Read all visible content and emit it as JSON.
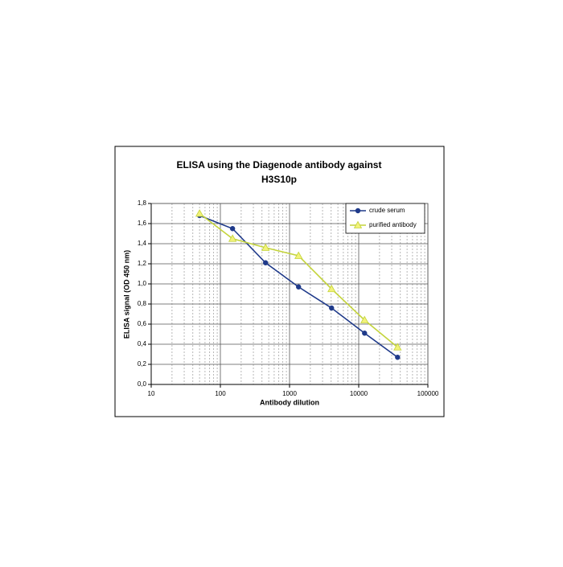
{
  "chart_data": {
    "type": "line",
    "title": [
      "ELISA using the Diagenode antibody against",
      "H3S10p"
    ],
    "x_label": "Antibody dilution",
    "y_label": "ELISA signal (OD 450 nm)",
    "x": [
      50,
      150,
      450,
      1350,
      4050,
      12150,
      36450
    ],
    "series": [
      {
        "name": "crude serum",
        "color": "#1f3a8a",
        "marker": "circle",
        "values": [
          1.68,
          1.55,
          1.21,
          0.97,
          0.76,
          0.51,
          0.27
        ]
      },
      {
        "name": "purified antibody",
        "color": "#c4d43c",
        "marker": "triangle",
        "values": [
          1.7,
          1.45,
          1.36,
          1.28,
          0.95,
          0.64,
          0.37
        ]
      }
    ],
    "x_log": true,
    "xlim": [
      10,
      100000
    ],
    "xticks": [
      10,
      100,
      1000,
      10000,
      100000
    ],
    "ylim": [
      0,
      1.8
    ],
    "yticks": [
      {
        "value": 0,
        "label": "0,0"
      },
      {
        "value": 0.2,
        "label": "0,2"
      },
      {
        "value": 0.4,
        "label": "0,4"
      },
      {
        "value": 0.6,
        "label": "0,6"
      },
      {
        "value": 0.8,
        "label": "0,8"
      },
      {
        "value": 1.0,
        "label": "1,0"
      },
      {
        "value": 1.2,
        "label": "1,2"
      },
      {
        "value": 1.4,
        "label": "1,4"
      },
      {
        "value": 1.6,
        "label": "1,6"
      },
      {
        "value": 1.8,
        "label": "1,8"
      }
    ],
    "grid": true,
    "minor_grid": true,
    "legend": "upper right"
  }
}
